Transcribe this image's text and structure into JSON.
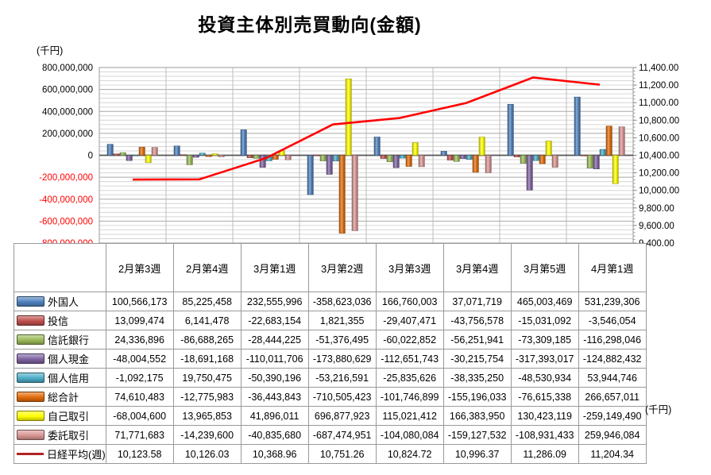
{
  "title": "投資主体別売買動向(金額)",
  "left_axis_unit": "(千円)",
  "right_axis_unit": "(千円)",
  "chart_data": {
    "type": "bar+line",
    "title": "投資主体別売買動向(金額)",
    "categories": [
      "2月第3週",
      "2月第4週",
      "3月第1週",
      "3月第2週",
      "3月第3週",
      "3月第4週",
      "3月第5週",
      "4月第1週"
    ],
    "bar_series": [
      {
        "name": "外国人",
        "color": "#4F81BD",
        "values": [
          100566173,
          85225458,
          232555996,
          -358623036,
          166760003,
          37071719,
          465003469,
          531239306
        ]
      },
      {
        "name": "投信",
        "color": "#C0504D",
        "values": [
          13099474,
          6141478,
          -22683154,
          1821355,
          -29407471,
          -43756578,
          -15031092,
          -3546054
        ]
      },
      {
        "name": "信託銀行",
        "color": "#9BBB59",
        "values": [
          24336896,
          -86688265,
          -28444225,
          -51376495,
          -60022852,
          -56251941,
          -73309185,
          -116298046
        ]
      },
      {
        "name": "個人現金",
        "color": "#8064A2",
        "values": [
          -48004552,
          -18691168,
          -110011706,
          -173880629,
          -112651743,
          -30215754,
          -317393017,
          -124882432
        ]
      },
      {
        "name": "個人信用",
        "color": "#4BACC6",
        "values": [
          -1092175,
          19750475,
          -50390196,
          -53216591,
          -25835626,
          -38335250,
          -48530934,
          53944746
        ]
      },
      {
        "name": "総合計",
        "color": "#E36C0A",
        "values": [
          74610483,
          -12775983,
          -36443843,
          -710505423,
          -101746899,
          -155196033,
          -76615338,
          266657011
        ]
      },
      {
        "name": "自己取引",
        "color": "#FFFF00",
        "values": [
          -68004600,
          13965853,
          41896011,
          696877923,
          115021412,
          166383950,
          130423119,
          -259149490
        ]
      },
      {
        "name": "委託取引",
        "color": "#D99694",
        "values": [
          71771683,
          -14239600,
          -40835680,
          -687474951,
          -104080084,
          -159127532,
          -108931433,
          259946084
        ]
      }
    ],
    "line_series": {
      "name": "日経平均(週)",
      "color": "#FF0000",
      "legend_color": "#B22222",
      "values": [
        10123.58,
        10126.03,
        10368.96,
        10751.26,
        10824.72,
        10996.37,
        11286.09,
        11204.34
      ]
    },
    "left_axis": {
      "min": -800000000,
      "max": 800000000,
      "major": 200000000,
      "minor": 40000000,
      "negative_label_color": "#FF0000"
    },
    "right_axis": {
      "min": 9400,
      "max": 11400,
      "major": 200,
      "minor": 40
    },
    "legend_position": "table-left",
    "grid": true
  }
}
